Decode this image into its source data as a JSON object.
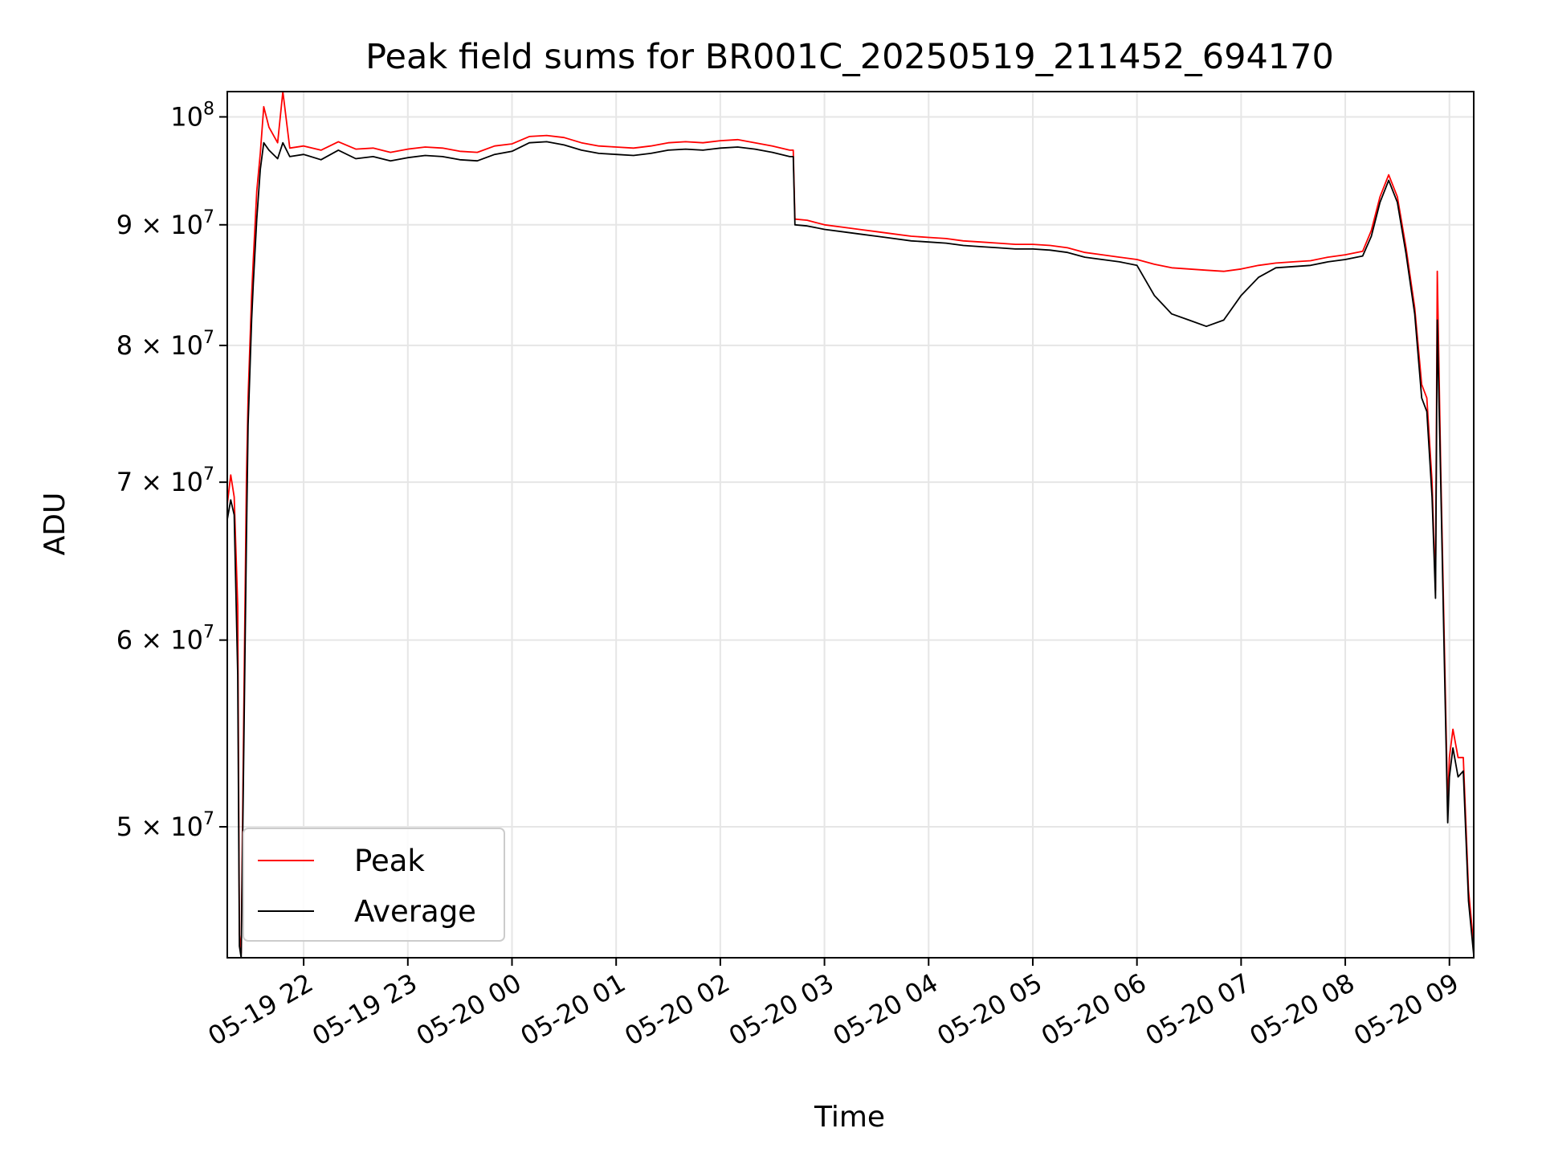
{
  "chart_data": {
    "type": "line",
    "title": "Peak field sums for BR001C_20250519_211452_694170",
    "xlabel": "Time",
    "ylabel": "ADU",
    "y_scale": "log",
    "ylim": [
      44000000,
      102500000
    ],
    "xlim": [
      "05-19 21:16",
      "05-20 09:14"
    ],
    "grid": true,
    "legend_position": "lower-left",
    "x_ticks": [
      {
        "t": "05-19 22:00",
        "label": "05-19 22"
      },
      {
        "t": "05-19 23:00",
        "label": "05-19 23"
      },
      {
        "t": "05-20 00:00",
        "label": "05-20 00"
      },
      {
        "t": "05-20 01:00",
        "label": "05-20 01"
      },
      {
        "t": "05-20 02:00",
        "label": "05-20 02"
      },
      {
        "t": "05-20 03:00",
        "label": "05-20 03"
      },
      {
        "t": "05-20 04:00",
        "label": "05-20 04"
      },
      {
        "t": "05-20 05:00",
        "label": "05-20 05"
      },
      {
        "t": "05-20 06:00",
        "label": "05-20 06"
      },
      {
        "t": "05-20 07:00",
        "label": "05-20 07"
      },
      {
        "t": "05-20 08:00",
        "label": "05-20 08"
      },
      {
        "t": "05-20 09:00",
        "label": "05-20 09"
      }
    ],
    "y_ticks": [
      {
        "value": 50000000,
        "mantissa": "5",
        "exp": "7"
      },
      {
        "value": 60000000,
        "mantissa": "6",
        "exp": "7"
      },
      {
        "value": 70000000,
        "mantissa": "7",
        "exp": "7"
      },
      {
        "value": 80000000,
        "mantissa": "8",
        "exp": "7"
      },
      {
        "value": 90000000,
        "mantissa": "9",
        "exp": "7"
      },
      {
        "value": 100000000,
        "mantissa": "",
        "exp": "8"
      }
    ],
    "series": [
      {
        "name": "Peak",
        "color": "#ff0000",
        "points": [
          [
            "05-19 21:16",
            68500000
          ],
          [
            "05-19 21:18",
            70500000
          ],
          [
            "05-19 21:20",
            69000000
          ],
          [
            "05-19 21:22",
            62000000
          ],
          [
            "05-19 21:23",
            45000000
          ],
          [
            "05-19 21:24",
            44200000
          ],
          [
            "05-19 21:25",
            52000000
          ],
          [
            "05-19 21:27",
            70000000
          ],
          [
            "05-19 21:28",
            76000000
          ],
          [
            "05-19 21:30",
            84000000
          ],
          [
            "05-19 21:31",
            87000000
          ],
          [
            "05-19 21:33",
            93000000
          ],
          [
            "05-19 21:35",
            96500000
          ],
          [
            "05-19 21:37",
            101000000
          ],
          [
            "05-19 21:40",
            99000000
          ],
          [
            "05-19 21:45",
            97500000
          ],
          [
            "05-19 21:48",
            102500000
          ],
          [
            "05-19 21:52",
            97000000
          ],
          [
            "05-19 22:00",
            97200000
          ],
          [
            "05-19 22:10",
            96800000
          ],
          [
            "05-19 22:20",
            97600000
          ],
          [
            "05-19 22:30",
            96900000
          ],
          [
            "05-19 22:40",
            97000000
          ],
          [
            "05-19 22:50",
            96600000
          ],
          [
            "05-19 23:00",
            96900000
          ],
          [
            "05-19 23:10",
            97100000
          ],
          [
            "05-19 23:20",
            97000000
          ],
          [
            "05-19 23:30",
            96700000
          ],
          [
            "05-19 23:40",
            96600000
          ],
          [
            "05-19 23:50",
            97200000
          ],
          [
            "05-20 00:00",
            97400000
          ],
          [
            "05-20 00:10",
            98100000
          ],
          [
            "05-20 00:20",
            98200000
          ],
          [
            "05-20 00:30",
            98000000
          ],
          [
            "05-20 00:40",
            97500000
          ],
          [
            "05-20 00:50",
            97200000
          ],
          [
            "05-20 01:00",
            97100000
          ],
          [
            "05-20 01:10",
            97000000
          ],
          [
            "05-20 01:20",
            97200000
          ],
          [
            "05-20 01:30",
            97500000
          ],
          [
            "05-20 01:40",
            97600000
          ],
          [
            "05-20 01:50",
            97500000
          ],
          [
            "05-20 02:00",
            97700000
          ],
          [
            "05-20 02:10",
            97800000
          ],
          [
            "05-20 02:20",
            97500000
          ],
          [
            "05-20 02:30",
            97200000
          ],
          [
            "05-20 02:40",
            96800000
          ],
          [
            "05-20 02:42",
            96800000
          ],
          [
            "05-20 02:43",
            90500000
          ],
          [
            "05-20 02:50",
            90400000
          ],
          [
            "05-20 03:00",
            90000000
          ],
          [
            "05-20 03:10",
            89800000
          ],
          [
            "05-20 03:20",
            89600000
          ],
          [
            "05-20 03:30",
            89400000
          ],
          [
            "05-20 03:40",
            89200000
          ],
          [
            "05-20 03:50",
            89000000
          ],
          [
            "05-20 04:00",
            88900000
          ],
          [
            "05-20 04:10",
            88800000
          ],
          [
            "05-20 04:20",
            88600000
          ],
          [
            "05-20 04:30",
            88500000
          ],
          [
            "05-20 04:40",
            88400000
          ],
          [
            "05-20 04:50",
            88300000
          ],
          [
            "05-20 05:00",
            88300000
          ],
          [
            "05-20 05:10",
            88200000
          ],
          [
            "05-20 05:20",
            88000000
          ],
          [
            "05-20 05:30",
            87600000
          ],
          [
            "05-20 05:40",
            87400000
          ],
          [
            "05-20 05:50",
            87200000
          ],
          [
            "05-20 06:00",
            87000000
          ],
          [
            "05-20 06:10",
            86600000
          ],
          [
            "05-20 06:20",
            86300000
          ],
          [
            "05-20 06:30",
            86200000
          ],
          [
            "05-20 06:40",
            86100000
          ],
          [
            "05-20 06:50",
            86000000
          ],
          [
            "05-20 07:00",
            86200000
          ],
          [
            "05-20 07:10",
            86500000
          ],
          [
            "05-20 07:20",
            86700000
          ],
          [
            "05-20 07:30",
            86800000
          ],
          [
            "05-20 07:40",
            86900000
          ],
          [
            "05-20 07:50",
            87200000
          ],
          [
            "05-20 08:00",
            87400000
          ],
          [
            "05-20 08:10",
            87700000
          ],
          [
            "05-20 08:15",
            89500000
          ],
          [
            "05-20 08:20",
            92500000
          ],
          [
            "05-20 08:25",
            94500000
          ],
          [
            "05-20 08:30",
            92500000
          ],
          [
            "05-20 08:35",
            88000000
          ],
          [
            "05-20 08:40",
            83000000
          ],
          [
            "05-20 08:44",
            77000000
          ],
          [
            "05-20 08:47",
            76000000
          ],
          [
            "05-20 08:50",
            70000000
          ],
          [
            "05-20 08:52",
            63000000
          ],
          [
            "05-20 08:53",
            86000000
          ],
          [
            "05-20 08:55",
            71000000
          ],
          [
            "05-20 08:57",
            60000000
          ],
          [
            "05-20 08:59",
            51000000
          ],
          [
            "05-20 09:00",
            53500000
          ],
          [
            "05-20 09:02",
            55000000
          ],
          [
            "05-20 09:05",
            53500000
          ],
          [
            "05-20 09:08",
            53500000
          ],
          [
            "05-20 09:11",
            47000000
          ],
          [
            "05-20 09:14",
            44500000
          ]
        ]
      },
      {
        "name": "Average",
        "color": "#000000",
        "points": [
          [
            "05-19 21:16",
            67500000
          ],
          [
            "05-19 21:18",
            68800000
          ],
          [
            "05-19 21:20",
            67800000
          ],
          [
            "05-19 21:22",
            58000000
          ],
          [
            "05-19 21:23",
            44500000
          ],
          [
            "05-19 21:24",
            44000000
          ],
          [
            "05-19 21:25",
            50500000
          ],
          [
            "05-19 21:27",
            66000000
          ],
          [
            "05-19 21:28",
            74000000
          ],
          [
            "05-19 21:30",
            82000000
          ],
          [
            "05-19 21:31",
            85000000
          ],
          [
            "05-19 21:33",
            90500000
          ],
          [
            "05-19 21:35",
            95000000
          ],
          [
            "05-19 21:37",
            97500000
          ],
          [
            "05-19 21:40",
            96800000
          ],
          [
            "05-19 21:45",
            96000000
          ],
          [
            "05-19 21:48",
            97500000
          ],
          [
            "05-19 21:52",
            96200000
          ],
          [
            "05-19 22:00",
            96400000
          ],
          [
            "05-19 22:10",
            95900000
          ],
          [
            "05-19 22:20",
            96800000
          ],
          [
            "05-19 22:30",
            96000000
          ],
          [
            "05-19 22:40",
            96200000
          ],
          [
            "05-19 22:50",
            95800000
          ],
          [
            "05-19 23:00",
            96100000
          ],
          [
            "05-19 23:10",
            96300000
          ],
          [
            "05-19 23:20",
            96200000
          ],
          [
            "05-19 23:30",
            95900000
          ],
          [
            "05-19 23:40",
            95800000
          ],
          [
            "05-19 23:50",
            96400000
          ],
          [
            "05-20 00:00",
            96700000
          ],
          [
            "05-20 00:10",
            97500000
          ],
          [
            "05-20 00:20",
            97600000
          ],
          [
            "05-20 00:30",
            97300000
          ],
          [
            "05-20 00:40",
            96800000
          ],
          [
            "05-20 00:50",
            96500000
          ],
          [
            "05-20 01:00",
            96400000
          ],
          [
            "05-20 01:10",
            96300000
          ],
          [
            "05-20 01:20",
            96500000
          ],
          [
            "05-20 01:30",
            96800000
          ],
          [
            "05-20 01:40",
            96900000
          ],
          [
            "05-20 01:50",
            96800000
          ],
          [
            "05-20 02:00",
            97000000
          ],
          [
            "05-20 02:10",
            97100000
          ],
          [
            "05-20 02:20",
            96900000
          ],
          [
            "05-20 02:30",
            96600000
          ],
          [
            "05-20 02:40",
            96200000
          ],
          [
            "05-20 02:42",
            96200000
          ],
          [
            "05-20 02:43",
            90000000
          ],
          [
            "05-20 02:50",
            89900000
          ],
          [
            "05-20 03:00",
            89600000
          ],
          [
            "05-20 03:10",
            89400000
          ],
          [
            "05-20 03:20",
            89200000
          ],
          [
            "05-20 03:30",
            89000000
          ],
          [
            "05-20 03:40",
            88800000
          ],
          [
            "05-20 03:50",
            88600000
          ],
          [
            "05-20 04:00",
            88500000
          ],
          [
            "05-20 04:10",
            88400000
          ],
          [
            "05-20 04:20",
            88200000
          ],
          [
            "05-20 04:30",
            88100000
          ],
          [
            "05-20 04:40",
            88000000
          ],
          [
            "05-20 04:50",
            87900000
          ],
          [
            "05-20 05:00",
            87900000
          ],
          [
            "05-20 05:10",
            87800000
          ],
          [
            "05-20 05:20",
            87600000
          ],
          [
            "05-20 05:30",
            87200000
          ],
          [
            "05-20 05:40",
            87000000
          ],
          [
            "05-20 05:50",
            86800000
          ],
          [
            "05-20 06:00",
            86500000
          ],
          [
            "05-20 06:10",
            84000000
          ],
          [
            "05-20 06:20",
            82500000
          ],
          [
            "05-20 06:30",
            82000000
          ],
          [
            "05-20 06:40",
            81500000
          ],
          [
            "05-20 06:50",
            82000000
          ],
          [
            "05-20 07:00",
            84000000
          ],
          [
            "05-20 07:10",
            85500000
          ],
          [
            "05-20 07:20",
            86300000
          ],
          [
            "05-20 07:30",
            86400000
          ],
          [
            "05-20 07:40",
            86500000
          ],
          [
            "05-20 07:50",
            86800000
          ],
          [
            "05-20 08:00",
            87000000
          ],
          [
            "05-20 08:10",
            87300000
          ],
          [
            "05-20 08:15",
            89000000
          ],
          [
            "05-20 08:20",
            92000000
          ],
          [
            "05-20 08:25",
            94000000
          ],
          [
            "05-20 08:30",
            92000000
          ],
          [
            "05-20 08:35",
            87500000
          ],
          [
            "05-20 08:40",
            82500000
          ],
          [
            "05-20 08:44",
            76000000
          ],
          [
            "05-20 08:47",
            75000000
          ],
          [
            "05-20 08:50",
            69000000
          ],
          [
            "05-20 08:52",
            62500000
          ],
          [
            "05-20 08:53",
            82000000
          ],
          [
            "05-20 08:55",
            70000000
          ],
          [
            "05-20 08:57",
            59000000
          ],
          [
            "05-20 08:59",
            50200000
          ],
          [
            "05-20 09:00",
            52500000
          ],
          [
            "05-20 09:02",
            54000000
          ],
          [
            "05-20 09:05",
            52500000
          ],
          [
            "05-20 09:08",
            52800000
          ],
          [
            "05-20 09:11",
            46500000
          ],
          [
            "05-20 09:14",
            44100000
          ]
        ]
      }
    ]
  }
}
